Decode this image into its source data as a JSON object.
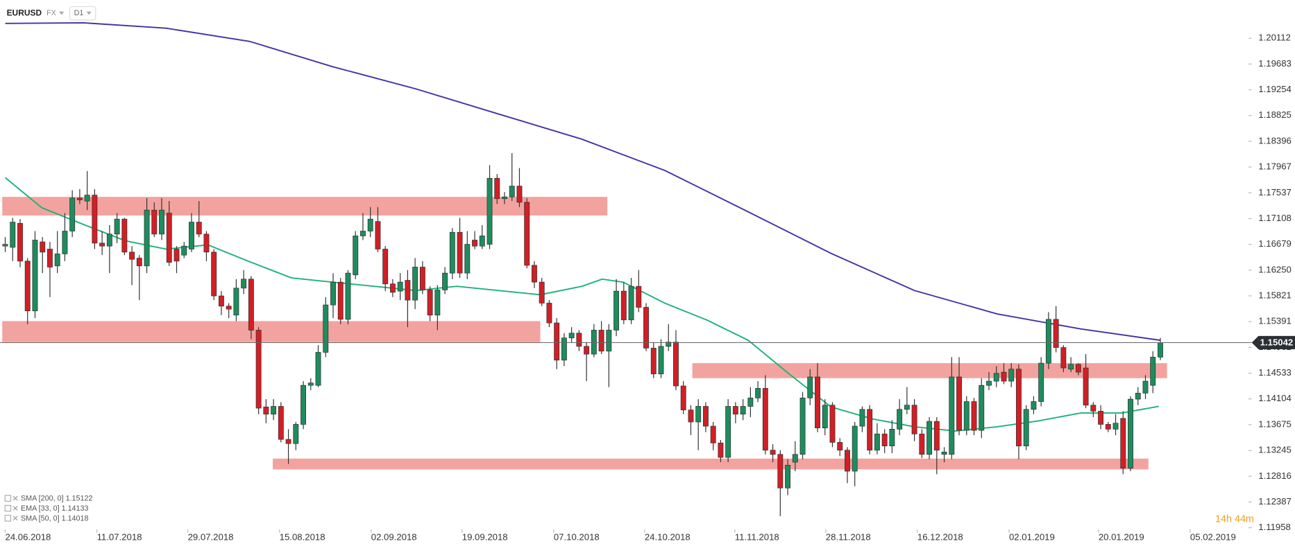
{
  "header": {
    "symbol": "EURUSD",
    "market": "FX",
    "interval": "D1"
  },
  "timer": "14h 44m",
  "chart_data": {
    "type": "candlestick",
    "xlim": [
      -0.7,
      166.6
    ],
    "ylim": [
      1.1193,
      1.2075
    ],
    "xticks": [
      {
        "value": 0,
        "label": "24.06.2018"
      },
      {
        "value": 12.3,
        "label": "11.07.2018"
      },
      {
        "value": 24.5,
        "label": "29.07.2018"
      },
      {
        "value": 36.8,
        "label": "15.08.2018"
      },
      {
        "value": 49.1,
        "label": "02.09.2018"
      },
      {
        "value": 61.3,
        "label": "19.09.2018"
      },
      {
        "value": 73.6,
        "label": "07.10.2018"
      },
      {
        "value": 85.8,
        "label": "24.10.2018"
      },
      {
        "value": 97.9,
        "label": "11.11.2018"
      },
      {
        "value": 110.1,
        "label": "28.11.2018"
      },
      {
        "value": 122.4,
        "label": "16.12.2018"
      },
      {
        "value": 134.7,
        "label": "02.01.2019"
      },
      {
        "value": 146.7,
        "label": "20.01.2019"
      },
      {
        "value": 159.0,
        "label": "05.02.2019"
      }
    ],
    "yticks": [
      1.20112,
      1.19683,
      1.19254,
      1.18825,
      1.18396,
      1.17967,
      1.17537,
      1.17108,
      1.16679,
      {
        "value": 1.1625,
        "label": "1.16250"
      },
      1.15821,
      1.15391,
      1.14962,
      1.14533,
      1.14104,
      1.13675,
      1.13245,
      1.12816,
      1.12387,
      1.11958
    ],
    "up_color": "#1e8c5e",
    "down_color": "#d11f25",
    "open": [
      1.1665,
      1.1663,
      1.1703,
      1.164,
      1.1557,
      1.1672,
      1.166,
      1.1632,
      1.1652,
      1.169,
      1.1745,
      1.174,
      1.175,
      1.167,
      1.1665,
      1.1685,
      1.171,
      1.1655,
      1.1645,
      1.1632,
      1.1725,
      1.1685,
      1.172,
      1.166,
      1.165,
      1.166,
      1.1705,
      1.1685,
      1.1655,
      1.1582,
      1.1565,
      1.155,
      1.1595,
      1.161,
      1.1525,
      1.1397,
      1.1385,
      1.1398,
      1.1343,
      1.1336,
      1.1368,
      1.1433,
      1.1433,
      1.1488,
      1.1567,
      1.1605,
      1.1543,
      1.1617,
      1.1682,
      1.169,
      1.1706,
      1.166,
      1.1602,
      1.159,
      1.1608,
      1.1575,
      1.163,
      1.1592,
      1.155,
      1.1592,
      1.162,
      1.1688,
      1.162,
      1.1675,
      1.1665,
      1.1668,
      1.1778,
      1.1744,
      1.1747,
      1.1765,
      1.1738,
      1.1633,
      1.1605,
      1.157,
      1.1537,
      1.1475,
      1.1512,
      1.152,
      1.1498,
      1.1485,
      1.1525,
      1.149,
      1.1525,
      1.159,
      1.1542,
      1.1598,
      1.1563,
      1.1495,
      1.1452,
      1.1498,
      1.1505,
      1.1432,
      1.1392,
      1.1372,
      1.1398,
      1.1365,
      1.1337,
      1.1313,
      1.1398,
      1.1385,
      1.1398,
      1.1412,
      1.1428,
      1.1325,
      1.1318,
      1.1262,
      1.1305,
      1.1318,
      1.1412,
      1.1447,
      1.1362,
      1.14,
      1.1338,
      1.1325,
      1.129,
      1.1365,
      1.1393,
      1.1325,
      1.1352,
      1.1332,
      1.136,
      1.1393,
      1.14,
      1.1352,
      1.1318,
      1.1373,
      1.1318,
      1.1318,
      1.1447,
      1.1358,
      1.1406,
      1.1358,
      1.1433,
      1.144,
      1.1455,
      1.144,
      1.146,
      1.1332,
      1.1393,
      1.1406,
      1.147,
      1.1543,
      1.1496,
      1.146,
      1.1468,
      1.1462,
      1.14,
      1.139,
      1.1368,
      1.136,
      1.1378,
      1.1295,
      1.141,
      1.142,
      1.1433,
      1.148
    ],
    "close": [
      1.1668,
      1.1705,
      1.164,
      1.1557,
      1.1675,
      1.1655,
      1.163,
      1.1652,
      1.169,
      1.1745,
      1.1742,
      1.175,
      1.167,
      1.1665,
      1.1685,
      1.171,
      1.1655,
      1.1643,
      1.1632,
      1.1725,
      1.1685,
      1.1725,
      1.1638,
      1.164,
      1.1665,
      1.1705,
      1.1685,
      1.1655,
      1.1582,
      1.1565,
      1.156,
      1.1595,
      1.161,
      1.1525,
      1.1395,
      1.1385,
      1.1398,
      1.1343,
      1.1336,
      1.1368,
      1.1433,
      1.1437,
      1.1488,
      1.1567,
      1.1605,
      1.1543,
      1.162,
      1.1682,
      1.169,
      1.171,
      1.166,
      1.1602,
      1.1588,
      1.1605,
      1.1575,
      1.163,
      1.1592,
      1.155,
      1.1592,
      1.162,
      1.1688,
      1.162,
      1.1668,
      1.1665,
      1.1682,
      1.1778,
      1.1744,
      1.1747,
      1.1765,
      1.1738,
      1.1633,
      1.1605,
      1.157,
      1.1537,
      1.1475,
      1.1512,
      1.152,
      1.1498,
      1.1485,
      1.1525,
      1.149,
      1.1525,
      1.159,
      1.1542,
      1.1598,
      1.1563,
      1.1495,
      1.1452,
      1.1498,
      1.1505,
      1.1432,
      1.1392,
      1.1372,
      1.1398,
      1.1365,
      1.1337,
      1.1313,
      1.1398,
      1.1385,
      1.1398,
      1.1412,
      1.1428,
      1.1325,
      1.1318,
      1.1262,
      1.13,
      1.1318,
      1.1412,
      1.1447,
      1.1362,
      1.14,
      1.1338,
      1.1325,
      1.129,
      1.1365,
      1.1393,
      1.1325,
      1.1352,
      1.1332,
      1.136,
      1.1393,
      1.14,
      1.1352,
      1.1318,
      1.1373,
      1.1325,
      1.1322,
      1.1447,
      1.1358,
      1.1406,
      1.1358,
      1.1433,
      1.144,
      1.1453,
      1.144,
      1.146,
      1.1332,
      1.1393,
      1.1406,
      1.147,
      1.1543,
      1.1496,
      1.1462,
      1.1468,
      1.1455,
      1.14,
      1.139,
      1.1368,
      1.136,
      1.137,
      1.1295,
      1.141,
      1.142,
      1.144,
      1.148,
      1.15042
    ],
    "high": [
      1.168,
      1.1712,
      1.171,
      1.1645,
      1.169,
      1.168,
      1.1672,
      1.169,
      1.172,
      1.1758,
      1.176,
      1.179,
      1.176,
      1.169,
      1.17,
      1.172,
      1.1712,
      1.1665,
      1.165,
      1.1745,
      1.1738,
      1.1745,
      1.174,
      1.1665,
      1.1672,
      1.172,
      1.174,
      1.169,
      1.166,
      1.159,
      1.157,
      1.161,
      1.1625,
      1.1615,
      1.153,
      1.141,
      1.141,
      1.1405,
      1.136,
      1.1372,
      1.144,
      1.1445,
      1.15,
      1.158,
      1.162,
      1.1612,
      1.1625,
      1.169,
      1.172,
      1.173,
      1.173,
      1.1665,
      1.161,
      1.162,
      1.1625,
      1.1645,
      1.164,
      1.1598,
      1.16,
      1.163,
      1.1695,
      1.1712,
      1.169,
      1.169,
      1.17,
      1.18,
      1.1785,
      1.1755,
      1.182,
      1.1795,
      1.1745,
      1.164,
      1.1612,
      1.1575,
      1.1545,
      1.152,
      1.153,
      1.1525,
      1.1505,
      1.1535,
      1.154,
      1.1535,
      1.161,
      1.1605,
      1.1612,
      1.1625,
      1.157,
      1.1505,
      1.151,
      1.1535,
      1.1525,
      1.144,
      1.14,
      1.141,
      1.1405,
      1.1372,
      1.1342,
      1.141,
      1.1405,
      1.141,
      1.143,
      1.144,
      1.145,
      1.1335,
      1.1325,
      1.131,
      1.134,
      1.1422,
      1.146,
      1.147,
      1.141,
      1.1405,
      1.1345,
      1.133,
      1.1372,
      1.1398,
      1.14,
      1.137,
      1.136,
      1.1375,
      1.141,
      1.143,
      1.141,
      1.136,
      1.138,
      1.138,
      1.133,
      1.148,
      1.148,
      1.1415,
      1.1412,
      1.1445,
      1.1455,
      1.1465,
      1.147,
      1.147,
      1.1468,
      1.14,
      1.1415,
      1.148,
      1.1555,
      1.1565,
      1.15,
      1.148,
      1.147,
      1.1485,
      1.1405,
      1.14,
      1.1372,
      1.1385,
      1.139,
      1.1415,
      1.143,
      1.145,
      1.149,
      1.1512
    ],
    "low": [
      1.1655,
      1.164,
      1.163,
      1.1535,
      1.1545,
      1.162,
      1.158,
      1.162,
      1.164,
      1.168,
      1.1735,
      1.1725,
      1.166,
      1.165,
      1.162,
      1.167,
      1.165,
      1.16,
      1.1575,
      1.162,
      1.168,
      1.1675,
      1.1632,
      1.162,
      1.1645,
      1.1655,
      1.168,
      1.164,
      1.1575,
      1.155,
      1.1545,
      1.154,
      1.1585,
      1.151,
      1.1385,
      1.137,
      1.1375,
      1.1338,
      1.1302,
      1.1325,
      1.136,
      1.1425,
      1.143,
      1.148,
      1.1545,
      1.1535,
      1.1535,
      1.161,
      1.1675,
      1.168,
      1.1655,
      1.159,
      1.158,
      1.1575,
      1.153,
      1.156,
      1.1585,
      1.154,
      1.1525,
      1.1585,
      1.161,
      1.1612,
      1.161,
      1.166,
      1.166,
      1.166,
      1.1735,
      1.1735,
      1.174,
      1.173,
      1.1628,
      1.1595,
      1.1565,
      1.153,
      1.146,
      1.1465,
      1.1505,
      1.149,
      1.144,
      1.148,
      1.1485,
      1.143,
      1.1515,
      1.1535,
      1.1535,
      1.1555,
      1.149,
      1.1445,
      1.1445,
      1.149,
      1.1425,
      1.1385,
      1.135,
      1.1325,
      1.1355,
      1.1325,
      1.1305,
      1.1305,
      1.137,
      1.1375,
      1.138,
      1.1405,
      1.1318,
      1.1305,
      1.1215,
      1.125,
      1.129,
      1.131,
      1.14,
      1.1355,
      1.135,
      1.133,
      1.1315,
      1.127,
      1.1265,
      1.1355,
      1.1318,
      1.1318,
      1.132,
      1.132,
      1.135,
      1.1385,
      1.134,
      1.1312,
      1.131,
      1.1285,
      1.1305,
      1.131,
      1.135,
      1.135,
      1.135,
      1.1345,
      1.1425,
      1.143,
      1.1435,
      1.143,
      1.131,
      1.1325,
      1.1385,
      1.1398,
      1.146,
      1.1488,
      1.1455,
      1.1455,
      1.145,
      1.1395,
      1.138,
      1.136,
      1.1355,
      1.135,
      1.1285,
      1.129,
      1.14,
      1.141,
      1.142,
      1.1475
    ],
    "series": [
      {
        "name": "SMA [200, 0] 1.15122",
        "color": "#4a2fa6",
        "x": [
          0,
          10.5,
          21.6,
          32.8,
          43.9,
          55.1,
          66.2,
          77.4,
          88.5,
          99.7,
          110.8,
          122.0,
          133.1,
          144.3,
          155
        ],
        "values": [
          1.2036,
          1.2037,
          1.2028,
          1.2006,
          1.1964,
          1.1927,
          1.1885,
          1.1843,
          1.1791,
          1.1722,
          1.1653,
          1.1591,
          1.1552,
          1.1527,
          1.1508
        ]
      },
      {
        "name": "EMA [33, 0] 1.14133",
        "color": "#e0a030",
        "visible": false
      },
      {
        "name": "SMA [50, 0] 1.14018",
        "color": "#1db27a",
        "x": [
          0,
          4.9,
          10.5,
          16.1,
          21.6,
          27.2,
          32.8,
          38.4,
          43.9,
          49.5,
          55.1,
          60.6,
          66.2,
          71.8,
          77.4,
          80.1,
          82.9,
          88.5,
          94.1,
          99.7,
          105.2,
          110.8,
          116.4,
          122.0,
          127.5,
          133.1,
          138.7,
          144.3,
          149.8,
          154.8
        ],
        "values": [
          1.1779,
          1.1729,
          1.1701,
          1.1674,
          1.166,
          1.1667,
          1.1639,
          1.1612,
          1.1605,
          1.1598,
          1.1591,
          1.1598,
          1.1591,
          1.1584,
          1.1598,
          1.161,
          1.1605,
          1.157,
          1.1542,
          1.1508,
          1.1452,
          1.1397,
          1.1377,
          1.1364,
          1.1357,
          1.1364,
          1.1374,
          1.1387,
          1.1387,
          1.1398
        ]
      }
    ],
    "zones_color": "#f29995",
    "zones": [
      {
        "x": [
          -0.4,
          80.8
        ],
        "y": [
          1.1716,
          1.1747
        ]
      },
      {
        "x": [
          -0.4,
          71.8
        ],
        "y": [
          1.1505,
          1.154
        ]
      },
      {
        "x": [
          92.2,
          155.9
        ],
        "y": [
          1.1445,
          1.147
        ]
      },
      {
        "x": [
          35.9,
          153.4
        ],
        "y": [
          1.1293,
          1.1311
        ]
      }
    ],
    "last_price": 1.15042
  }
}
